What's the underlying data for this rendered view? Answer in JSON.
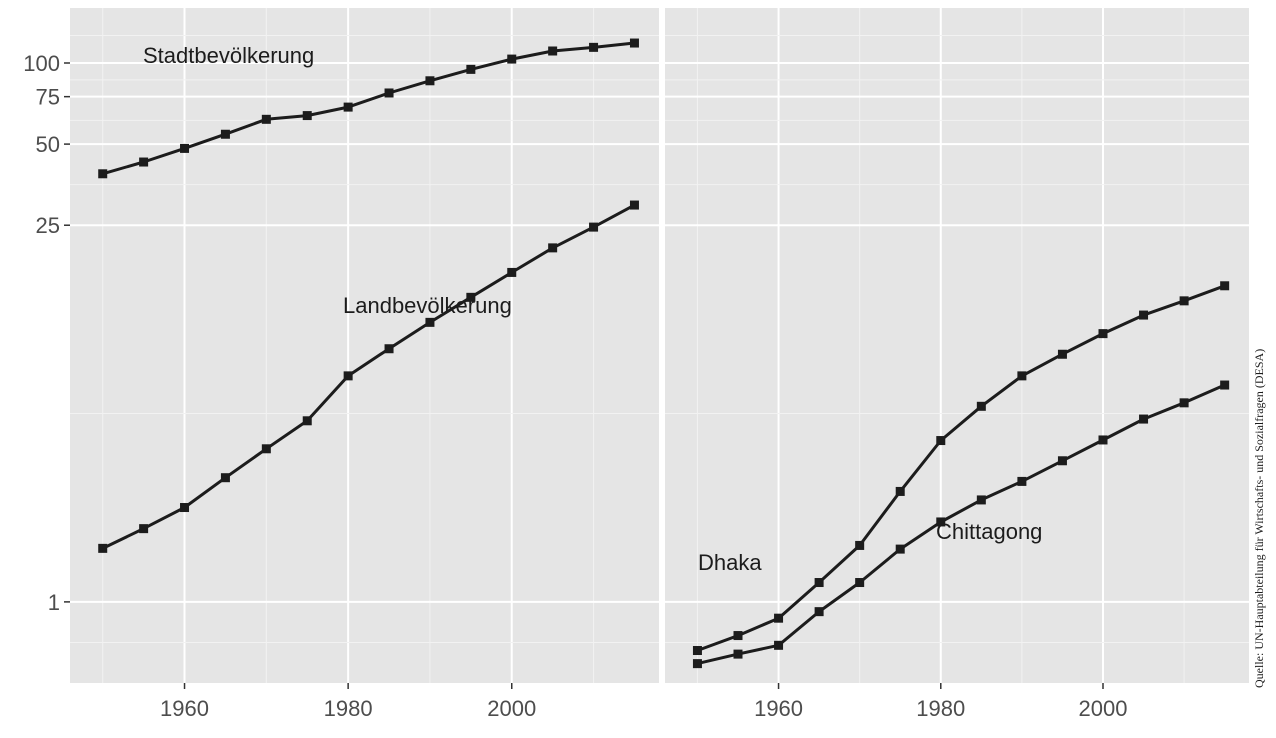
{
  "source": "Quelle: UN-Hauptabteilung für Wirtschafts- und Sozialfragen (DESA)",
  "chart_data": [
    {
      "type": "line",
      "title": "",
      "xlabel": "",
      "ylabel": "",
      "yscale": "log",
      "x_ticks": [
        1960,
        1980,
        2000
      ],
      "y_ticks": [
        {
          "value": 1,
          "label": "1"
        },
        {
          "value": 25,
          "label": "25"
        },
        {
          "value": 50,
          "label": "50"
        },
        {
          "value": 75,
          "label": "75"
        },
        {
          "value": 100,
          "label": "100"
        }
      ],
      "xlim": [
        1946,
        2018
      ],
      "ylim": [
        0.5,
        160
      ],
      "grid": true,
      "x": [
        1950,
        1955,
        1960,
        1965,
        1970,
        1975,
        1980,
        1985,
        1990,
        1995,
        2000,
        2005,
        2010,
        2015
      ],
      "series": [
        {
          "name": "Stadtbevölkerung",
          "values": [
            38.8,
            42.9,
            48.2,
            54.4,
            61.8,
            63.8,
            68.6,
            77.4,
            85.9,
            94.7,
            103.4,
            110.8,
            114.3,
            118.6
          ]
        },
        {
          "name": "Landbevölkerung",
          "values": [
            1.58,
            1.87,
            2.24,
            2.89,
            3.7,
            4.7,
            6.9,
            8.7,
            10.9,
            13.5,
            16.7,
            20.6,
            24.6,
            29.7
          ]
        }
      ]
    },
    {
      "type": "line",
      "title": "",
      "xlabel": "",
      "ylabel": "",
      "yscale": "log",
      "x_ticks": [
        1960,
        1980,
        2000
      ],
      "xlim": [
        1946,
        2018
      ],
      "ylim": [
        0.5,
        160
      ],
      "grid": true,
      "x": [
        1950,
        1955,
        1960,
        1965,
        1970,
        1975,
        1980,
        1985,
        1990,
        1995,
        2000,
        2005,
        2010,
        2015
      ],
      "series": [
        {
          "name": "Dhaka",
          "values": [
            0.66,
            0.75,
            0.87,
            1.18,
            1.62,
            2.57,
            3.97,
            5.32,
            6.9,
            8.3,
            9.9,
            11.6,
            13.1,
            14.9
          ]
        },
        {
          "name": "Chittagong",
          "values": [
            0.59,
            0.64,
            0.69,
            0.92,
            1.18,
            1.57,
            1.98,
            2.39,
            2.8,
            3.34,
            3.99,
            4.77,
            5.48,
            6.38
          ]
        }
      ]
    }
  ]
}
